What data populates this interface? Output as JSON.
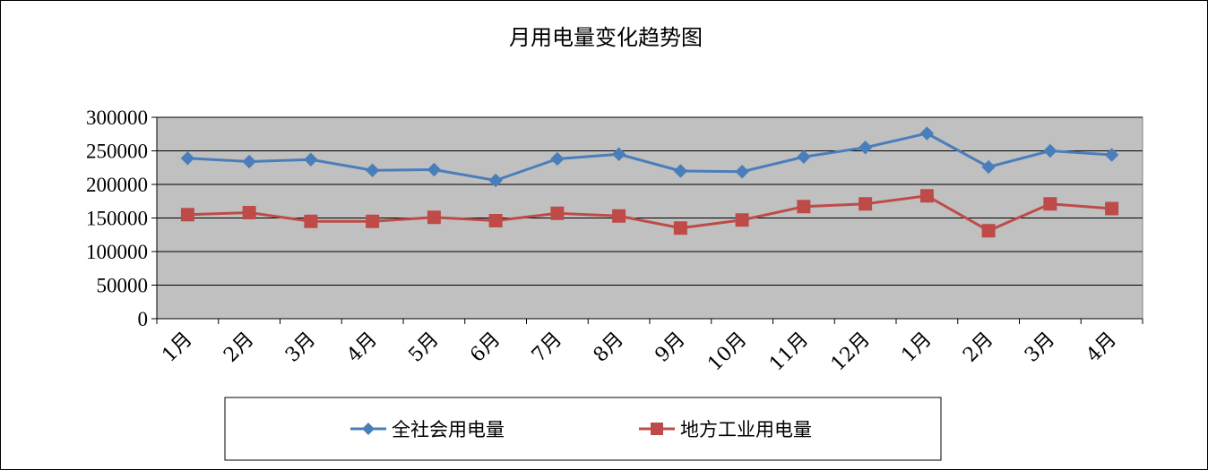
{
  "chart_data": {
    "type": "line",
    "title": "月用电量变化趋势图",
    "categories": [
      "1月",
      "2月",
      "3月",
      "4月",
      "5月",
      "6月",
      "7月",
      "8月",
      "9月",
      "10月",
      "11月",
      "12月",
      "1月",
      "2月",
      "3月",
      "4月"
    ],
    "ylim": [
      0,
      300000
    ],
    "yticks": [
      "300000",
      "250000",
      "200000",
      "150000",
      "100000",
      "50000",
      "0"
    ],
    "grid": true,
    "legend_position": "bottom",
    "plot_background": "#C0C0C0",
    "series": [
      {
        "name": "全社会用电量",
        "color": "#4A7EBB",
        "marker": "diamond",
        "values": [
          239000,
          234000,
          237000,
          221000,
          222000,
          206000,
          238000,
          245000,
          220000,
          219000,
          241000,
          255000,
          276000,
          226000,
          250000,
          244000
        ]
      },
      {
        "name": "地方工业用电量",
        "color": "#BE4B48",
        "marker": "square",
        "values": [
          155000,
          158000,
          145000,
          145000,
          151000,
          146000,
          157000,
          153000,
          135000,
          147000,
          167000,
          171000,
          183000,
          131000,
          171000,
          164000
        ]
      }
    ]
  }
}
